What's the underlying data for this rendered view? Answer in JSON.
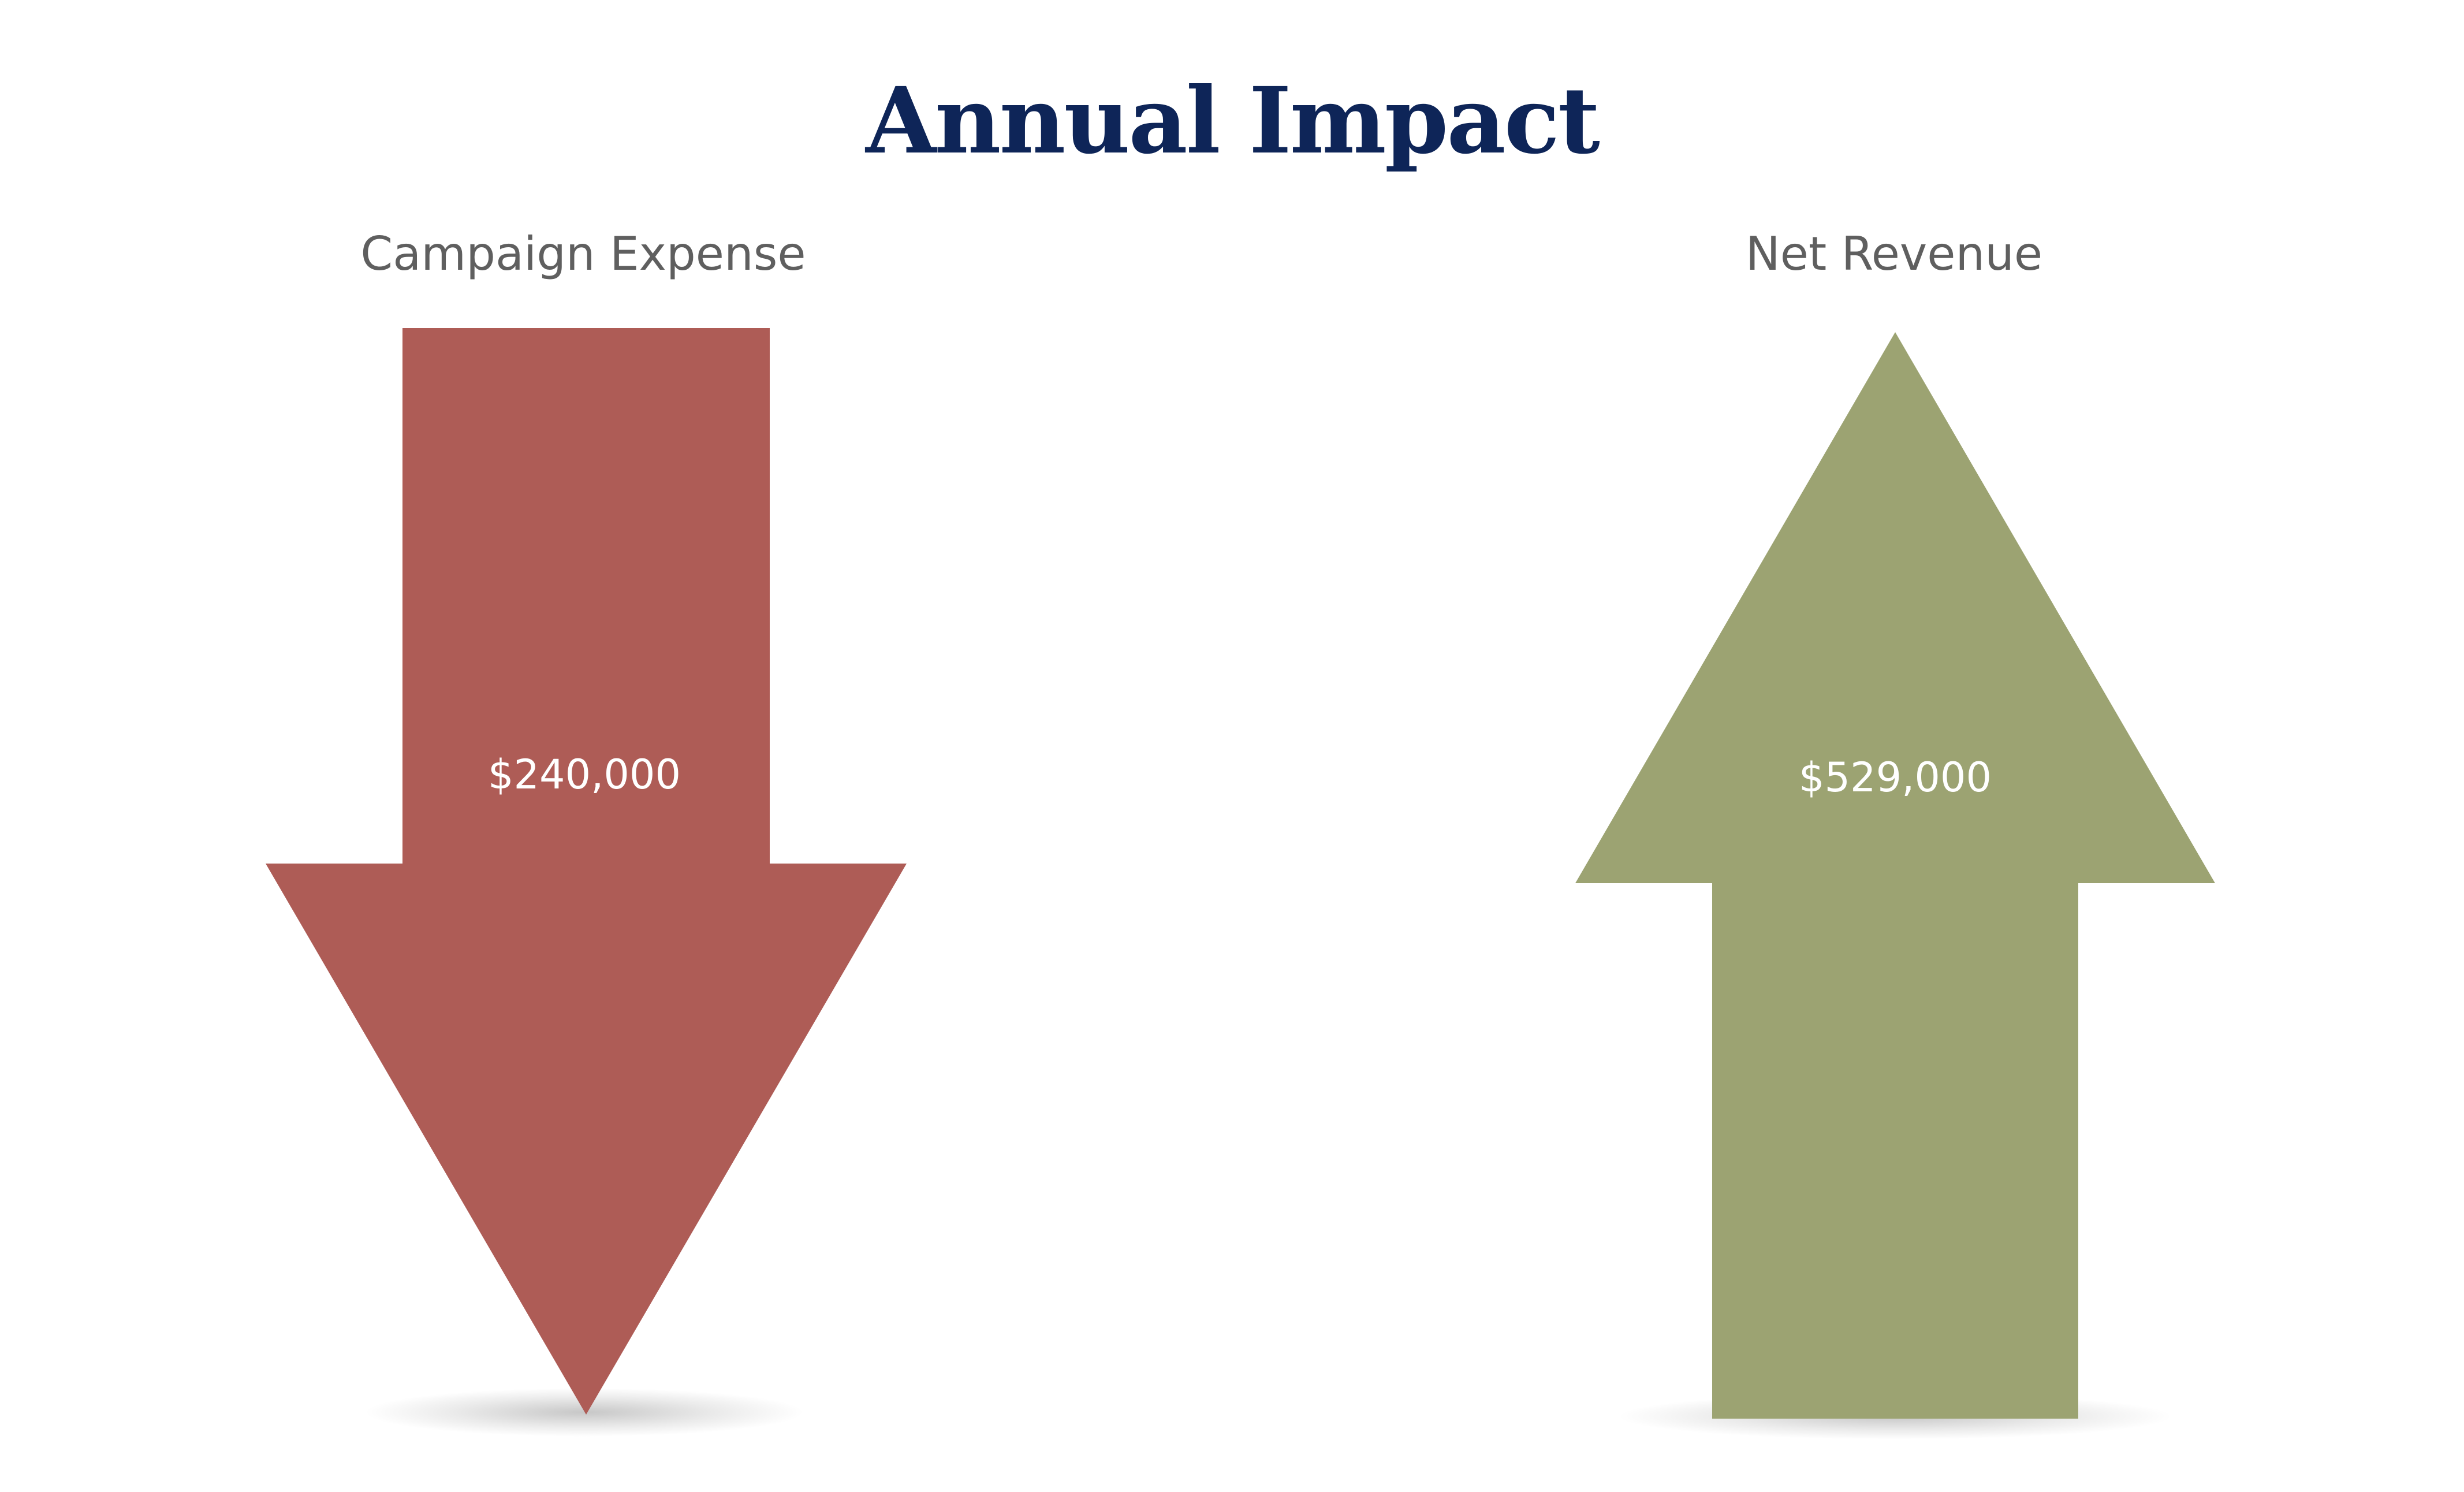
{
  "title": "Annual Impact",
  "colors": {
    "title": "#0e2558",
    "label": "#5f5f5f",
    "expense_arrow": "#ae5c56",
    "revenue_arrow": "#9ca372"
  },
  "panels": [
    {
      "label": "Campaign Expense",
      "value": "$240,000",
      "icon": "down-arrow-icon",
      "direction": "down"
    },
    {
      "label": "Net Revenue",
      "value": "$529,000",
      "icon": "up-arrow-icon",
      "direction": "up"
    }
  ]
}
